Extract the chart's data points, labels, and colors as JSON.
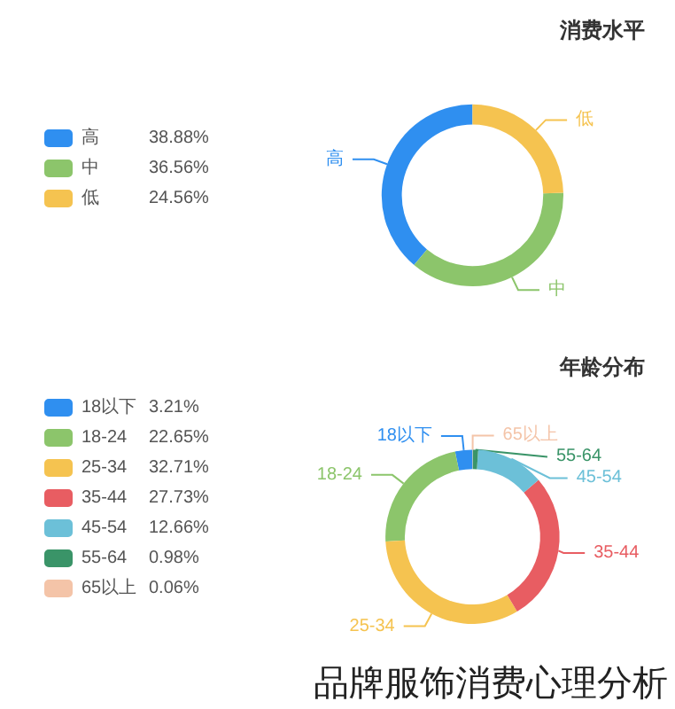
{
  "chart_data": [
    {
      "type": "donut",
      "title": "消费水平",
      "categories": [
        "高",
        "中",
        "低"
      ],
      "values": [
        38.88,
        36.56,
        24.56
      ],
      "value_labels": [
        "38.88%",
        "36.56%",
        "24.56%"
      ],
      "colors": [
        "#2f8ff0",
        "#8cc56b",
        "#f5c350"
      ],
      "legend": "left"
    },
    {
      "type": "donut",
      "title": "年龄分布",
      "categories": [
        "18以下",
        "18-24",
        "25-34",
        "35-44",
        "45-54",
        "55-64",
        "65以上"
      ],
      "values": [
        3.21,
        22.65,
        32.71,
        27.73,
        12.66,
        0.98,
        0.06
      ],
      "value_labels": [
        "3.21%",
        "22.65%",
        "32.71%",
        "27.73%",
        "12.66%",
        "0.98%",
        "0.06%"
      ],
      "colors": [
        "#2f8ff0",
        "#8cc56b",
        "#f5c350",
        "#e85d62",
        "#6cc0d8",
        "#3a9468",
        "#f4c4a8"
      ],
      "legend": "left",
      "annotations": [
        "品牌服饰消费心理分析"
      ]
    }
  ]
}
